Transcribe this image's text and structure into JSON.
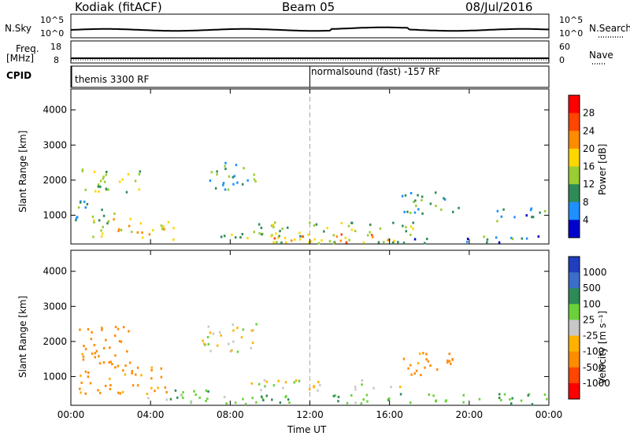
{
  "header": {
    "station": "Kodiak (fitACF)",
    "beam": "Beam 05",
    "date": "08/Jul/2016"
  },
  "top_panels": {
    "nsky_label": "N.Sky",
    "nsky_ticks": [
      "10^5",
      "10^0"
    ],
    "nsearch_label": "N.Search",
    "nsearch_ticks": [
      "10^5",
      "10^0"
    ],
    "freq_label": "Freq.",
    "freq_unit": "[MHz]",
    "freq_ticks": [
      "18",
      "8"
    ],
    "nave_label": "Nave",
    "nave_ticks": [
      "60",
      "0"
    ],
    "cpid_label": "CPID",
    "cpid_segments": [
      {
        "start_hour": 0,
        "label": "themis 3300 RF"
      },
      {
        "start_hour": 12,
        "label": "normalsound (fast) -157 RF"
      }
    ]
  },
  "chart_data": [
    {
      "type": "heatmap",
      "panel": "power",
      "ylabel": "Slant Range [km]",
      "colorbar_label": "Power [dB]",
      "xlabel": "",
      "xlim_hours": [
        0,
        24
      ],
      "ylim_km": [
        180,
        4600
      ],
      "yticks": [
        1000,
        2000,
        3000,
        4000
      ],
      "colorbar_ticks": [
        "28",
        "24",
        "20",
        "16",
        "12",
        "8",
        "4"
      ],
      "colorbar_colors": [
        "#ff0000",
        "#ff4500",
        "#ff8c00",
        "#ffd700",
        "#9acd32",
        "#2e8b57",
        "#1e90ff",
        "#0000cd"
      ],
      "regions": [
        {
          "t0": 0.4,
          "t1": 3.8,
          "r0": 1600,
          "r1": 2300,
          "level": 14
        },
        {
          "t0": 0.2,
          "t1": 2.2,
          "r0": 700,
          "r1": 1400,
          "level": 10
        },
        {
          "t0": 1.0,
          "t1": 5.2,
          "r0": 300,
          "r1": 900,
          "level": 18
        },
        {
          "t0": 6.8,
          "t1": 9.5,
          "r0": 1700,
          "r1": 2500,
          "level": 10
        },
        {
          "t0": 7.5,
          "t1": 17.5,
          "r0": 200,
          "r1": 800,
          "level": 14
        },
        {
          "t0": 10.0,
          "t1": 16.5,
          "r0": 200,
          "r1": 450,
          "level": 22
        },
        {
          "t0": 16.0,
          "t1": 24.0,
          "r0": 200,
          "r1": 400,
          "level": 8
        },
        {
          "t0": 16.5,
          "t1": 19.5,
          "r0": 1000,
          "r1": 1700,
          "level": 9
        },
        {
          "t0": 21.0,
          "t1": 23.8,
          "r0": 800,
          "r1": 1200,
          "level": 8
        }
      ]
    },
    {
      "type": "heatmap",
      "panel": "velocity",
      "ylabel": "Slant Range [km]",
      "colorbar_label": "Velocity [m s⁻¹]",
      "xlabel": "Time UT",
      "xlim_hours": [
        0,
        24
      ],
      "ylim_km": [
        180,
        4600
      ],
      "xticks": [
        "00:00",
        "04:00",
        "08:00",
        "12:00",
        "16:00",
        "20:00",
        "00:00"
      ],
      "yticks": [
        1000,
        2000,
        3000,
        4000
      ],
      "colorbar_ticks": [
        "1000",
        "500",
        "100",
        "25",
        "-25",
        "-100",
        "-500",
        "-1000"
      ],
      "colorbar_colors": [
        "#1f3fbf",
        "#3a6ec8",
        "#2e8b57",
        "#6ad13a",
        "#c8c8c8",
        "#ffb300",
        "#ff8c00",
        "#ff4500",
        "#ff0000"
      ],
      "regions": [
        {
          "t0": 0.3,
          "t1": 3.0,
          "r0": 1300,
          "r1": 2500,
          "level": -150
        },
        {
          "t0": 0.3,
          "t1": 4.8,
          "r0": 500,
          "r1": 1300,
          "level": -120
        },
        {
          "t0": 3.5,
          "t1": 9.0,
          "r0": 200,
          "r1": 600,
          "level": 60
        },
        {
          "t0": 6.5,
          "t1": 9.5,
          "r0": 1700,
          "r1": 2500,
          "level": 0
        },
        {
          "t0": 8.5,
          "t1": 16.5,
          "r0": 600,
          "r1": 900,
          "level": 0
        },
        {
          "t0": 9.0,
          "t1": 24.0,
          "r0": 200,
          "r1": 500,
          "level": 80
        },
        {
          "t0": 16.5,
          "t1": 19.5,
          "r0": 1000,
          "r1": 1700,
          "level": -150
        }
      ]
    }
  ]
}
